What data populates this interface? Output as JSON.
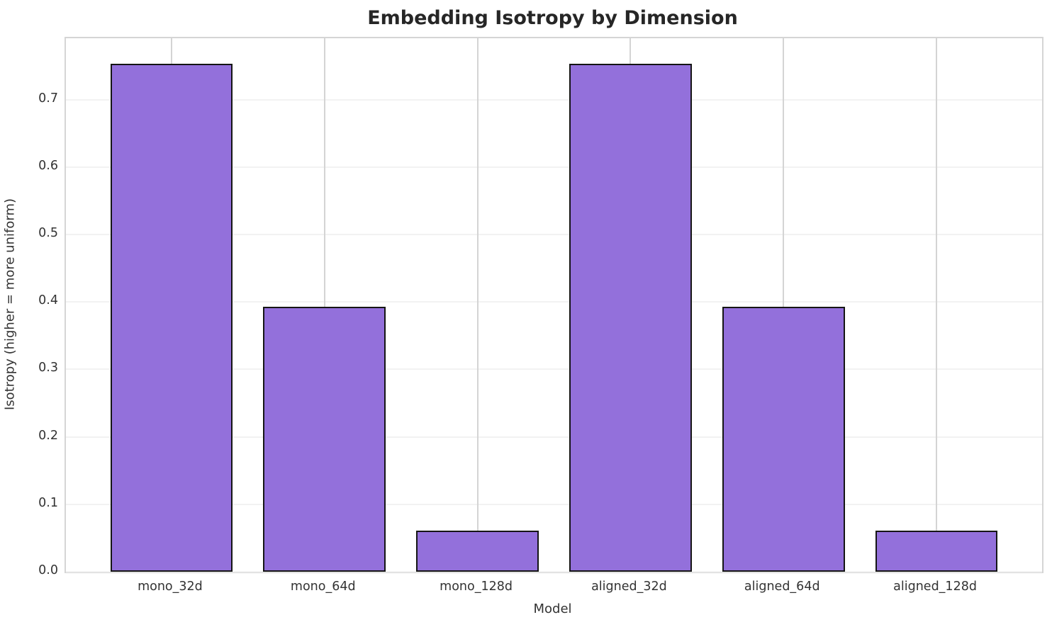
{
  "title": "Embedding Isotropy by Dimension",
  "axes": {
    "xlabel": "Model",
    "ylabel": "Isotropy (higher = more uniform)"
  },
  "colors": {
    "bar_fill": "#9370DB",
    "bar_edge": "#151515",
    "grid_horizontal": "#f2f2f2",
    "grid_vertical": "#d4d4d4",
    "spine": "#d5d5d5",
    "title_text": "#262626",
    "tick_text": "#333333"
  },
  "chart_data": {
    "type": "bar",
    "categories": [
      "mono_32d",
      "mono_64d",
      "mono_128d",
      "aligned_32d",
      "aligned_64d",
      "aligned_128d"
    ],
    "values": [
      0.753,
      0.393,
      0.061,
      0.753,
      0.393,
      0.061
    ],
    "title": "Embedding Isotropy by Dimension",
    "xlabel": "Model",
    "ylabel": "Isotropy (higher = more uniform)",
    "ylim": [
      0,
      0.791
    ],
    "yticks": [
      0.0,
      0.1,
      0.2,
      0.3,
      0.4,
      0.5,
      0.6,
      0.7
    ],
    "ytick_format_decimals": 1,
    "xlim_units": [
      -0.69,
      5.69
    ],
    "bar_width_units": 0.8,
    "grid": "both",
    "legend_position": "none"
  }
}
